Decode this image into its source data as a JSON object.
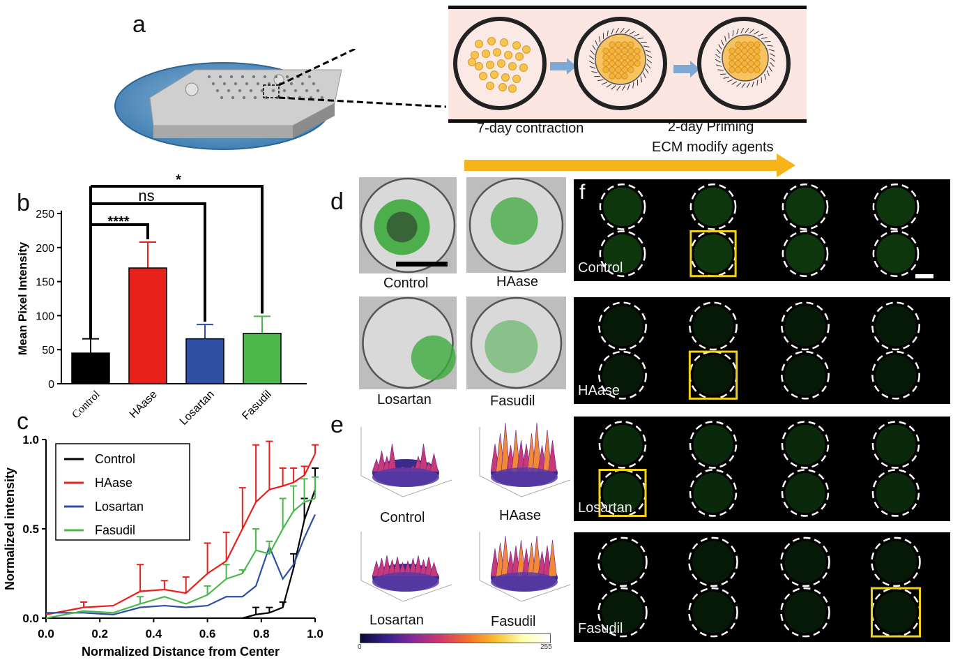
{
  "panels": {
    "a": "a",
    "b": "b",
    "c": "c",
    "d": "d",
    "e": "e",
    "f": "f"
  },
  "panel_a": {
    "step1": "7-day contraction",
    "step2_line1": "2-day Priming",
    "step2_line2": "ECM modify agents"
  },
  "panel_b": {
    "sig_star": "*",
    "sig_ns": "ns",
    "sig_4star": "****"
  },
  "panel_d": {
    "labels": [
      "Control",
      "HAase",
      "Losartan",
      "Fasudil"
    ]
  },
  "panel_e": {
    "labels": [
      "Control",
      "HAase",
      "Losartan",
      "Fasudil"
    ],
    "colorbar_min": "0",
    "colorbar_max": "255"
  },
  "panel_f": {
    "rows": [
      "Control",
      "HAase",
      "Losartan",
      "Fasudil"
    ]
  },
  "colors": {
    "control": "#000000",
    "haase": "#e8211c",
    "losartan": "#2f4fa3",
    "fasudil": "#4ab84a",
    "arrow": "#f4b41a"
  },
  "chart_data": [
    {
      "type": "bar",
      "ylabel": "Mean Pixel Intensity",
      "categories": [
        "Control",
        "HAase",
        "Losartan",
        "Fasudil"
      ],
      "values": [
        45,
        170,
        66,
        74
      ],
      "errors": [
        21,
        38,
        21,
        25
      ],
      "ylim": [
        0,
        250
      ],
      "yticks": [
        "0",
        "50",
        "100",
        "150",
        "200",
        "250"
      ]
    },
    {
      "type": "line",
      "xlabel": "Normalized Distance from Center",
      "ylabel": "Normalized intensity",
      "xlim": [
        0,
        1
      ],
      "ylim": [
        0,
        1
      ],
      "xticks": [
        "0.0",
        "0.2",
        "0.4",
        "0.6",
        "0.8",
        "1.0"
      ],
      "yticks": [
        "0.0",
        "0.5",
        "1.0"
      ],
      "legend_position": "top-left",
      "series": [
        {
          "name": "Control",
          "x": [
            0.73,
            0.78,
            0.83,
            0.88,
            0.92,
            0.96,
            1.0
          ],
          "y": [
            0.0,
            0.02,
            0.03,
            0.06,
            0.28,
            0.55,
            0.72
          ],
          "err": [
            0.0,
            0.04,
            0.03,
            0.03,
            0.08,
            0.12,
            0.12
          ]
        },
        {
          "name": "HAase",
          "x": [
            0.0,
            0.14,
            0.25,
            0.35,
            0.44,
            0.52,
            0.6,
            0.67,
            0.73,
            0.78,
            0.83,
            0.88,
            0.92,
            0.96,
            1.0
          ],
          "y": [
            0.02,
            0.06,
            0.07,
            0.15,
            0.16,
            0.14,
            0.25,
            0.32,
            0.5,
            0.65,
            0.72,
            0.74,
            0.76,
            0.8,
            0.92
          ],
          "err": [
            0.0,
            0.03,
            0.0,
            0.15,
            0.05,
            0.09,
            0.17,
            0.16,
            0.23,
            0.32,
            0.27,
            0.1,
            0.08,
            0.05,
            0.05
          ]
        },
        {
          "name": "Losartan",
          "x": [
            0.0,
            0.14,
            0.25,
            0.35,
            0.44,
            0.52,
            0.6,
            0.67,
            0.73,
            0.78,
            0.83,
            0.88,
            0.92,
            0.96,
            1.0
          ],
          "y": [
            0.03,
            0.03,
            0.02,
            0.06,
            0.07,
            0.06,
            0.07,
            0.12,
            0.12,
            0.18,
            0.4,
            0.22,
            0.3,
            0.45,
            0.58
          ],
          "err": [
            0.0,
            0.0,
            0.0,
            0.0,
            0.0,
            0.0,
            0.0,
            0.0,
            0.0,
            0.0,
            0.0,
            0.0,
            0.0,
            0.0,
            0.0
          ]
        },
        {
          "name": "Fasudil",
          "x": [
            0.0,
            0.14,
            0.25,
            0.35,
            0.44,
            0.52,
            0.6,
            0.67,
            0.73,
            0.78,
            0.83,
            0.88,
            0.92,
            0.96,
            1.0
          ],
          "y": [
            0.0,
            0.04,
            0.03,
            0.08,
            0.12,
            0.08,
            0.13,
            0.22,
            0.25,
            0.38,
            0.36,
            0.5,
            0.6,
            0.65,
            0.67
          ],
          "err": [
            0.0,
            0.0,
            0.0,
            0.04,
            0.0,
            0.0,
            0.05,
            0.08,
            0.02,
            0.12,
            0.07,
            0.17,
            0.14,
            0.13,
            0.12
          ]
        }
      ]
    }
  ]
}
